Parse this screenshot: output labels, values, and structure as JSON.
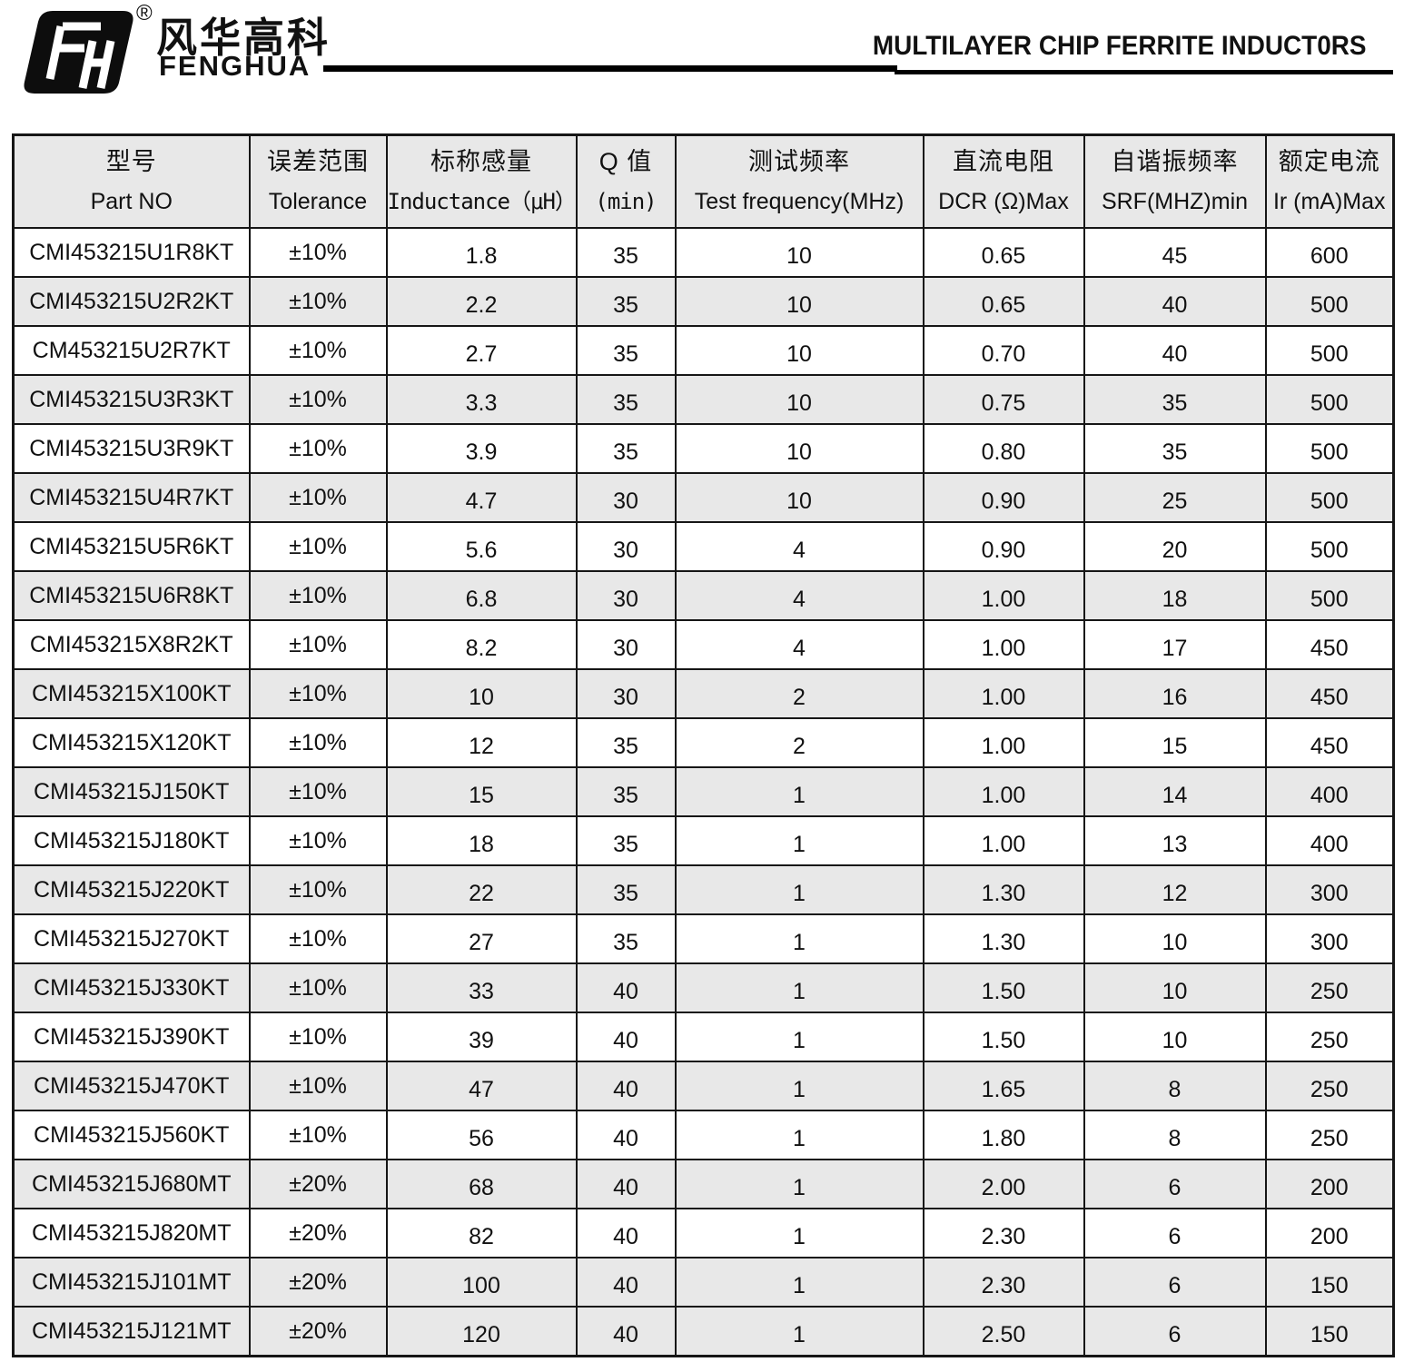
{
  "header": {
    "brand_cn": "风华高科",
    "brand_en": "FENGHUA",
    "registered_mark": "®",
    "doc_title": "MULTILAYER CHIP FERRITE INDUCT0RS",
    "accent_color": "#000000"
  },
  "table": {
    "header_bg": "#e8e8e8",
    "row_alt_bg": "#e8e8e8",
    "border_color": "#161616",
    "columns": [
      {
        "key": "part_no",
        "cn": "型号",
        "en": "Part NO"
      },
      {
        "key": "tolerance",
        "cn": "误差范围",
        "en": "Tolerance"
      },
      {
        "key": "inductance",
        "cn": "标称感量",
        "en": "Inductance（μH）"
      },
      {
        "key": "q_min",
        "cn": "Q 值",
        "en": "(min)"
      },
      {
        "key": "test_frequency",
        "cn": "测试频率",
        "en": "Test frequency(MHz)"
      },
      {
        "key": "dcr",
        "cn": "直流电阻",
        "en": "DCR (Ω)Max"
      },
      {
        "key": "srf",
        "cn": "自谐振频率",
        "en": "SRF(MHZ)min"
      },
      {
        "key": "rated_current",
        "cn": "额定电流",
        "en": "Ir (mA)Max"
      }
    ],
    "rows": [
      [
        "CMI453215U1R8KT",
        "±10%",
        "1.8",
        "35",
        "10",
        "0.65",
        "45",
        "600"
      ],
      [
        "CMI453215U2R2KT",
        "±10%",
        "2.2",
        "35",
        "10",
        "0.65",
        "40",
        "500"
      ],
      [
        "CM453215U2R7KT",
        "±10%",
        "2.7",
        "35",
        "10",
        "0.70",
        "40",
        "500"
      ],
      [
        "CMI453215U3R3KT",
        "±10%",
        "3.3",
        "35",
        "10",
        "0.75",
        "35",
        "500"
      ],
      [
        "CMI453215U3R9KT",
        "±10%",
        "3.9",
        "35",
        "10",
        "0.80",
        "35",
        "500"
      ],
      [
        "CMI453215U4R7KT",
        "±10%",
        "4.7",
        "30",
        "10",
        "0.90",
        "25",
        "500"
      ],
      [
        "CMI453215U5R6KT",
        "±10%",
        "5.6",
        "30",
        "4",
        "0.90",
        "20",
        "500"
      ],
      [
        "CMI453215U6R8KT",
        "±10%",
        "6.8",
        "30",
        "4",
        "1.00",
        "18",
        "500"
      ],
      [
        "CMI453215X8R2KT",
        "±10%",
        "8.2",
        "30",
        "4",
        "1.00",
        "17",
        "450"
      ],
      [
        "CMI453215X100KT",
        "±10%",
        "10",
        "30",
        "2",
        "1.00",
        "16",
        "450"
      ],
      [
        "CMI453215X120KT",
        "±10%",
        "12",
        "35",
        "2",
        "1.00",
        "15",
        "450"
      ],
      [
        "CMI453215J150KT",
        "±10%",
        "15",
        "35",
        "1",
        "1.00",
        "14",
        "400"
      ],
      [
        "CMI453215J180KT",
        "±10%",
        "18",
        "35",
        "1",
        "1.00",
        "13",
        "400"
      ],
      [
        "CMI453215J220KT",
        "±10%",
        "22",
        "35",
        "1",
        "1.30",
        "12",
        "300"
      ],
      [
        "CMI453215J270KT",
        "±10%",
        "27",
        "35",
        "1",
        "1.30",
        "10",
        "300"
      ],
      [
        "CMI453215J330KT",
        "±10%",
        "33",
        "40",
        "1",
        "1.50",
        "10",
        "250"
      ],
      [
        "CMI453215J390KT",
        "±10%",
        "39",
        "40",
        "1",
        "1.50",
        "10",
        "250"
      ],
      [
        "CMI453215J470KT",
        "±10%",
        "47",
        "40",
        "1",
        "1.65",
        "8",
        "250"
      ],
      [
        "CMI453215J560KT",
        "±10%",
        "56",
        "40",
        "1",
        "1.80",
        "8",
        "250"
      ],
      [
        "CMI453215J680MT",
        "±20%",
        "68",
        "40",
        "1",
        "2.00",
        "6",
        "200"
      ],
      [
        "CMI453215J820MT",
        "±20%",
        "82",
        "40",
        "1",
        "2.30",
        "6",
        "200"
      ],
      [
        "CMI453215J101MT",
        "±20%",
        "100",
        "40",
        "1",
        "2.30",
        "6",
        "150"
      ],
      [
        "CMI453215J121MT",
        "±20%",
        "120",
        "40",
        "1",
        "2.50",
        "6",
        "150"
      ]
    ],
    "shaded_row_indices": [
      1,
      3,
      5,
      7,
      9,
      11,
      13,
      15,
      17,
      19,
      21,
      22
    ]
  }
}
